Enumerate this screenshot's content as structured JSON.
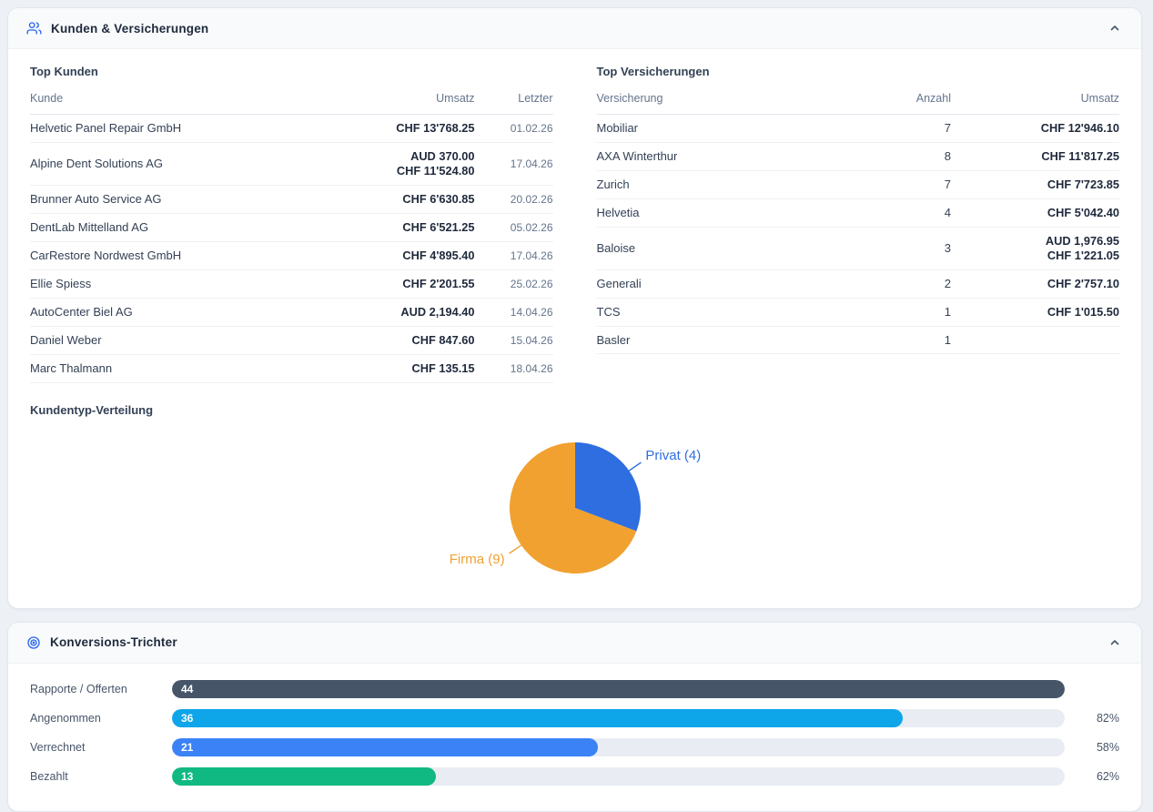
{
  "colors": {
    "accent_blue": "#2563eb",
    "chevron": "#475569",
    "pie_privat": "#2f6ee0",
    "pie_firma": "#f0a130"
  },
  "kunden_card": {
    "title": "Kunden & Versicherungen",
    "top_kunden": {
      "title": "Top Kunden",
      "headers": {
        "kunde": "Kunde",
        "umsatz": "Umsatz",
        "letzter": "Letzter"
      },
      "rows": [
        {
          "kunde": "Helvetic Panel Repair GmbH",
          "umsatz1": "CHF 13'768.25",
          "letzter": "01.02.26"
        },
        {
          "kunde": "Alpine Dent Solutions AG",
          "umsatz1": "AUD 370.00",
          "umsatz2": "CHF 11'524.80",
          "letzter": "17.04.26"
        },
        {
          "kunde": "Brunner Auto Service AG",
          "umsatz1": "CHF 6'630.85",
          "letzter": "20.02.26"
        },
        {
          "kunde": "DentLab Mittelland AG",
          "umsatz1": "CHF 6'521.25",
          "letzter": "05.02.26"
        },
        {
          "kunde": "CarRestore Nordwest GmbH",
          "umsatz1": "CHF 4'895.40",
          "letzter": "17.04.26"
        },
        {
          "kunde": "Ellie Spiess",
          "umsatz1": "CHF 2'201.55",
          "letzter": "25.02.26"
        },
        {
          "kunde": "AutoCenter Biel AG",
          "umsatz1": "AUD 2,194.40",
          "letzter": "14.04.26"
        },
        {
          "kunde": "Daniel Weber",
          "umsatz1": "CHF 847.60",
          "letzter": "15.04.26"
        },
        {
          "kunde": "Marc Thalmann",
          "umsatz1": "CHF 135.15",
          "letzter": "18.04.26"
        }
      ]
    },
    "top_versicherungen": {
      "title": "Top Versicherungen",
      "headers": {
        "versicherung": "Versicherung",
        "anzahl": "Anzahl",
        "umsatz": "Umsatz"
      },
      "rows": [
        {
          "versicherung": "Mobiliar",
          "anzahl": 7,
          "umsatz1": "CHF 12'946.10"
        },
        {
          "versicherung": "AXA Winterthur",
          "anzahl": 8,
          "umsatz1": "CHF 11'817.25"
        },
        {
          "versicherung": "Zurich",
          "anzahl": 7,
          "umsatz1": "CHF 7'723.85"
        },
        {
          "versicherung": "Helvetia",
          "anzahl": 4,
          "umsatz1": "CHF 5'042.40"
        },
        {
          "versicherung": "Baloise",
          "anzahl": 3,
          "umsatz1": "AUD 1,976.95",
          "umsatz2": "CHF 1'221.05"
        },
        {
          "versicherung": "Generali",
          "anzahl": 2,
          "umsatz1": "CHF 2'757.10"
        },
        {
          "versicherung": "TCS",
          "anzahl": 1,
          "umsatz1": "CHF 1'015.50"
        },
        {
          "versicherung": "Basler",
          "anzahl": 1,
          "umsatz1": ""
        }
      ]
    },
    "kundentyp": {
      "title": "Kundentyp-Verteilung",
      "chart_data": {
        "type": "pie",
        "labels": [
          "Privat (4)",
          "Firma (9)"
        ],
        "values": [
          4,
          9
        ],
        "colors": [
          "#2f6ee0",
          "#f0a130"
        ],
        "legend_position": "outside-labels"
      }
    }
  },
  "funnel_card": {
    "title": "Konversions-Trichter",
    "chart_data": {
      "type": "bar",
      "max": 44,
      "rows": [
        {
          "label": "Rapporte / Offerten",
          "value": 44,
          "percent": "",
          "color": "#475569"
        },
        {
          "label": "Angenommen",
          "value": 36,
          "percent": "82%",
          "color": "#0ea5e9"
        },
        {
          "label": "Verrechnet",
          "value": 21,
          "percent": "58%",
          "color": "#3b82f6"
        },
        {
          "label": "Bezahlt",
          "value": 13,
          "percent": "62%",
          "color": "#10b981"
        }
      ]
    }
  }
}
